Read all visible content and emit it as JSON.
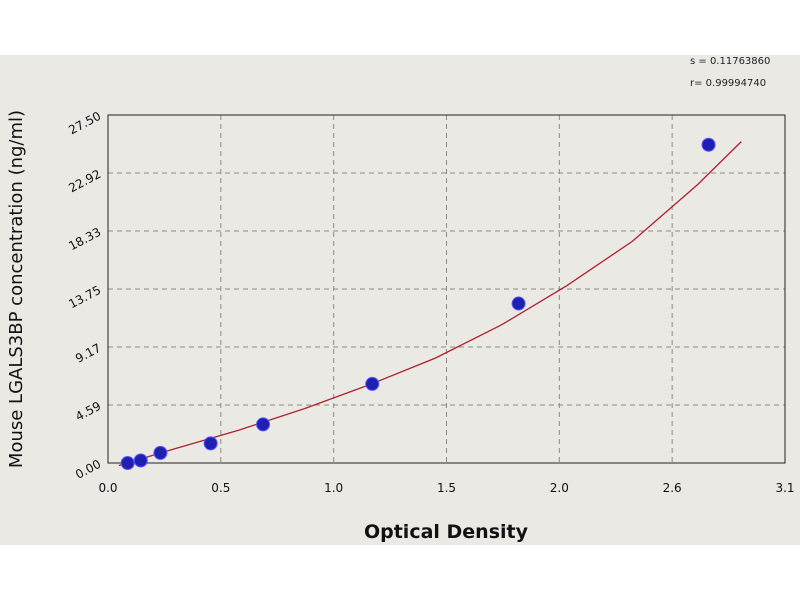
{
  "chart_data": {
    "type": "scatter",
    "title": "",
    "xlabel": "Optical Density",
    "ylabel": "Mouse LGALS3BP concentration (ng/ml)",
    "xlim": [
      0.0,
      3.1
    ],
    "ylim": [
      0.0,
      27.5
    ],
    "x_ticks": [
      "0.0",
      "0.5",
      "1.0",
      "1.5",
      "2.0",
      "2.6",
      "3.1"
    ],
    "y_ticks": [
      "0.00",
      "4.59",
      "9.17",
      "13.75",
      "18.33",
      "22.92",
      "27.50"
    ],
    "grid": true,
    "points": [
      {
        "x": 0.09,
        "y": 0.0
      },
      {
        "x": 0.15,
        "y": 0.2
      },
      {
        "x": 0.24,
        "y": 0.8
      },
      {
        "x": 0.47,
        "y": 1.55
      },
      {
        "x": 0.71,
        "y": 3.05
      },
      {
        "x": 1.21,
        "y": 6.25
      },
      {
        "x": 1.88,
        "y": 12.6
      },
      {
        "x": 2.75,
        "y": 25.15
      }
    ],
    "fit_line": {
      "x": [
        0.05,
        0.3,
        0.6,
        0.9,
        1.2,
        1.5,
        1.8,
        2.1,
        2.4,
        2.7,
        2.9
      ],
      "y": [
        -0.2,
        1.1,
        2.6,
        4.3,
        6.2,
        8.3,
        10.9,
        14.0,
        17.5,
        22.0,
        25.4
      ]
    },
    "marker_color": "#1f1fb0",
    "line_color": "#b02030",
    "background_color": "#ebe9e4"
  },
  "stats": {
    "s_label": "s = 0.11763860",
    "r_label": "r= 0.99994740"
  }
}
